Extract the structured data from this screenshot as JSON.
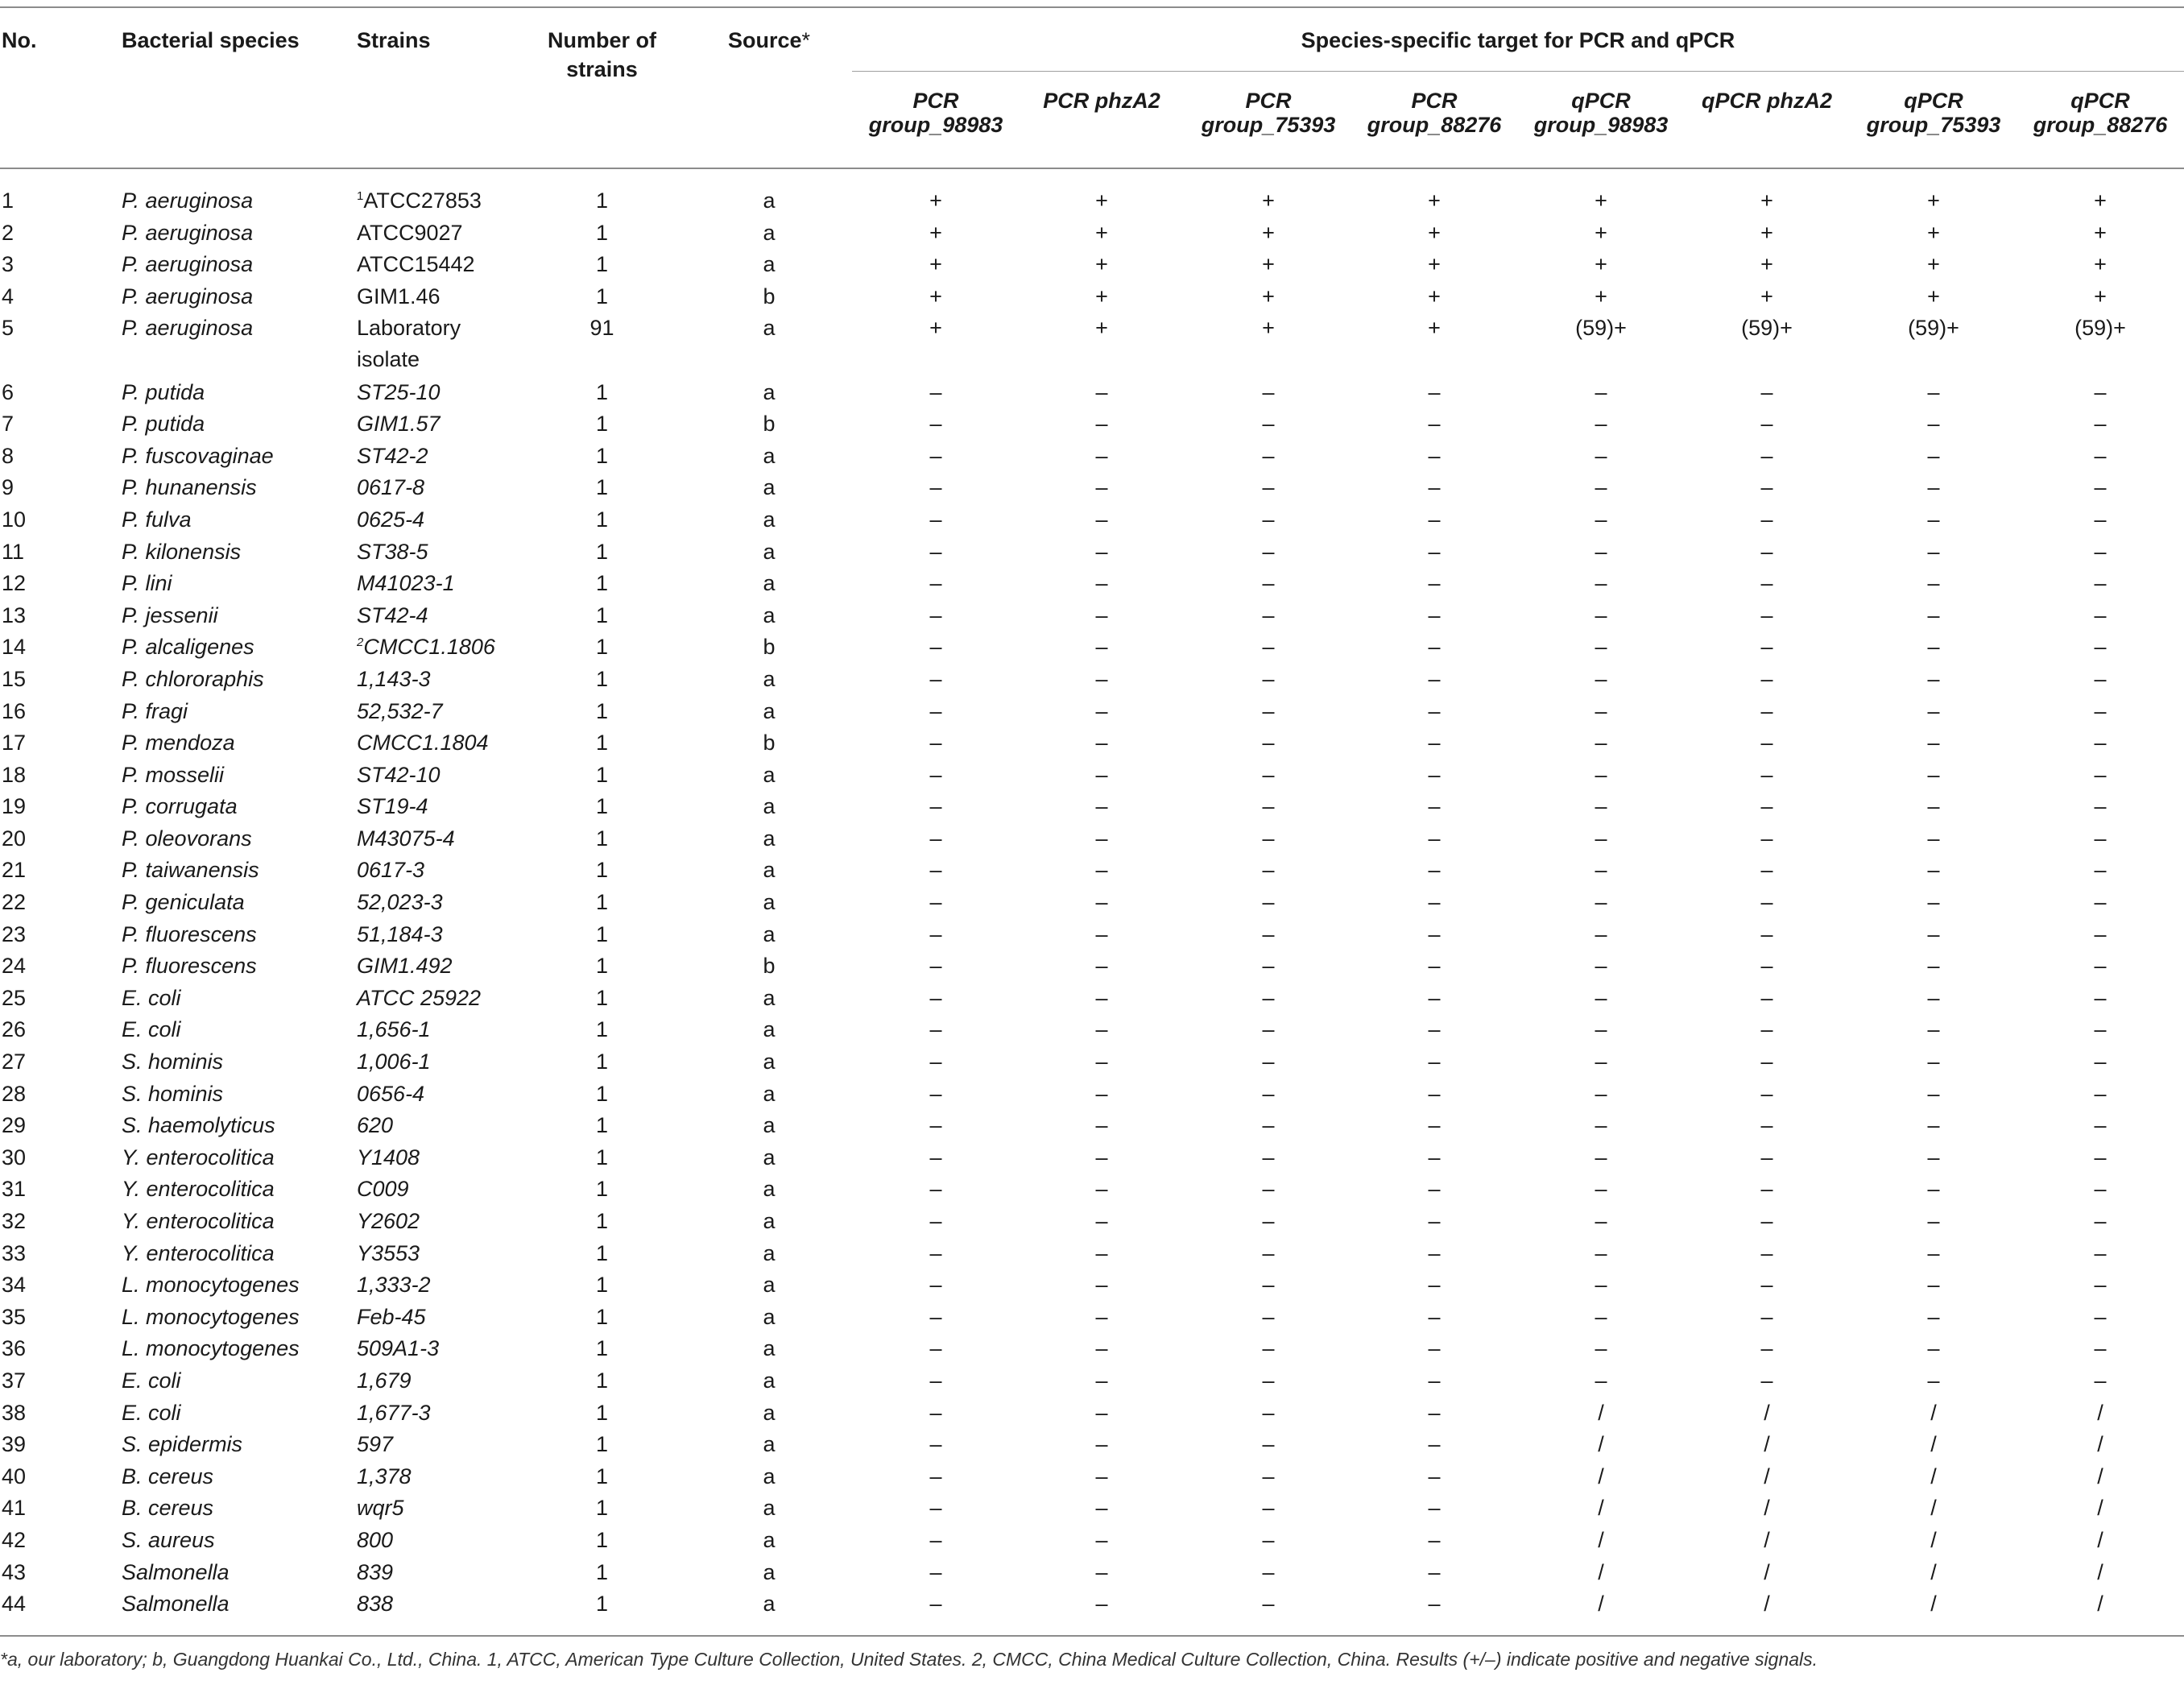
{
  "header": {
    "no": "No.",
    "species": "Bacterial species",
    "strains": "Strains",
    "number_line1": "Number of",
    "number_line2": "strains",
    "source": "Source",
    "source_mark": "*",
    "span_title": "Species-specific target for PCR and qPCR",
    "targets": [
      {
        "l1": "PCR",
        "l2": "group_98983"
      },
      {
        "l1": "PCR phzA2",
        "l2": ""
      },
      {
        "l1": "PCR",
        "l2": "group_75393"
      },
      {
        "l1": "PCR",
        "l2": "group_88276"
      },
      {
        "l1": "qPCR",
        "l2": "group_98983"
      },
      {
        "l1": "qPCR phzA2",
        "l2": ""
      },
      {
        "l1": "qPCR",
        "l2": "group_75393"
      },
      {
        "l1": "qPCR",
        "l2": "group_88276"
      }
    ]
  },
  "rows": [
    {
      "no": "1",
      "species": "P. aeruginosa",
      "sup": "1",
      "strain": "ATCC27853",
      "strain_italic": false,
      "n": "1",
      "src": "a",
      "v": [
        "+",
        "+",
        "+",
        "+",
        "+",
        "+",
        "+",
        "+"
      ]
    },
    {
      "no": "2",
      "species": "P. aeruginosa",
      "strain": "ATCC9027",
      "strain_italic": false,
      "n": "1",
      "src": "a",
      "v": [
        "+",
        "+",
        "+",
        "+",
        "+",
        "+",
        "+",
        "+"
      ]
    },
    {
      "no": "3",
      "species": "P. aeruginosa",
      "strain": "ATCC15442",
      "strain_italic": false,
      "n": "1",
      "src": "a",
      "v": [
        "+",
        "+",
        "+",
        "+",
        "+",
        "+",
        "+",
        "+"
      ]
    },
    {
      "no": "4",
      "species": "P. aeruginosa",
      "strain": "GIM1.46",
      "strain_italic": false,
      "n": "1",
      "src": "b",
      "v": [
        "+",
        "+",
        "+",
        "+",
        "+",
        "+",
        "+",
        "+"
      ]
    },
    {
      "no": "5",
      "species": "P. aeruginosa",
      "strain": "Laboratory isolate",
      "strain_italic": false,
      "tall": true,
      "n": "91",
      "src": "a",
      "v": [
        "+",
        "+",
        "+",
        "+",
        "(59)+",
        "(59)+",
        "(59)+",
        "(59)+"
      ]
    },
    {
      "no": "6",
      "species": "P. putida",
      "strain": "ST25-10",
      "n": "1",
      "src": "a",
      "v": [
        "–",
        "–",
        "–",
        "–",
        "–",
        "–",
        "–",
        "–"
      ]
    },
    {
      "no": "7",
      "species": "P. putida",
      "strain": "GIM1.57",
      "n": "1",
      "src": "b",
      "v": [
        "–",
        "–",
        "–",
        "–",
        "–",
        "–",
        "–",
        "–"
      ]
    },
    {
      "no": "8",
      "species": "P. fuscovaginae",
      "strain": "ST42-2",
      "n": "1",
      "src": "a",
      "v": [
        "–",
        "–",
        "–",
        "–",
        "–",
        "–",
        "–",
        "–"
      ]
    },
    {
      "no": "9",
      "species": "P. hunanensis",
      "strain": "0617-8",
      "n": "1",
      "src": "a",
      "v": [
        "–",
        "–",
        "–",
        "–",
        "–",
        "–",
        "–",
        "–"
      ]
    },
    {
      "no": "10",
      "species": "P. fulva",
      "strain": "0625-4",
      "n": "1",
      "src": "a",
      "v": [
        "–",
        "–",
        "–",
        "–",
        "–",
        "–",
        "–",
        "–"
      ]
    },
    {
      "no": "11",
      "species": "P. kilonensis",
      "strain": "ST38-5",
      "n": "1",
      "src": "a",
      "v": [
        "–",
        "–",
        "–",
        "–",
        "–",
        "–",
        "–",
        "–"
      ]
    },
    {
      "no": "12",
      "species": "P. lini",
      "strain": "M41023-1",
      "n": "1",
      "src": "a",
      "v": [
        "–",
        "–",
        "–",
        "–",
        "–",
        "–",
        "–",
        "–"
      ]
    },
    {
      "no": "13",
      "species": "P. jessenii",
      "strain": "ST42-4",
      "n": "1",
      "src": "a",
      "v": [
        "–",
        "–",
        "–",
        "–",
        "–",
        "–",
        "–",
        "–"
      ]
    },
    {
      "no": "14",
      "species": "P. alcaligenes",
      "sup": "2",
      "strain": "CMCC1.1806",
      "n": "1",
      "src": "b",
      "v": [
        "–",
        "–",
        "–",
        "–",
        "–",
        "–",
        "–",
        "–"
      ]
    },
    {
      "no": "15",
      "species": "P. chlororaphis",
      "strain": "1,143-3",
      "n": "1",
      "src": "a",
      "v": [
        "–",
        "–",
        "–",
        "–",
        "–",
        "–",
        "–",
        "–"
      ]
    },
    {
      "no": "16",
      "species": "P. fragi",
      "strain": "52,532-7",
      "n": "1",
      "src": "a",
      "v": [
        "–",
        "–",
        "–",
        "–",
        "–",
        "–",
        "–",
        "–"
      ]
    },
    {
      "no": "17",
      "species": "P. mendoza",
      "strain": "CMCC1.1804",
      "n": "1",
      "src": "b",
      "v": [
        "–",
        "–",
        "–",
        "–",
        "–",
        "–",
        "–",
        "–"
      ]
    },
    {
      "no": "18",
      "species": "P. mosselii",
      "strain": "ST42-10",
      "n": "1",
      "src": "a",
      "v": [
        "–",
        "–",
        "–",
        "–",
        "–",
        "–",
        "–",
        "–"
      ]
    },
    {
      "no": "19",
      "species": "P. corrugata",
      "strain": "ST19-4",
      "n": "1",
      "src": "a",
      "v": [
        "–",
        "–",
        "–",
        "–",
        "–",
        "–",
        "–",
        "–"
      ]
    },
    {
      "no": "20",
      "species": "P. oleovorans",
      "strain": "M43075-4",
      "n": "1",
      "src": "a",
      "v": [
        "–",
        "–",
        "–",
        "–",
        "–",
        "–",
        "–",
        "–"
      ]
    },
    {
      "no": "21",
      "species": "P. taiwanensis",
      "strain": "0617-3",
      "n": "1",
      "src": "a",
      "v": [
        "–",
        "–",
        "–",
        "–",
        "–",
        "–",
        "–",
        "–"
      ]
    },
    {
      "no": "22",
      "species": "P. geniculata",
      "strain": "52,023-3",
      "n": "1",
      "src": "a",
      "v": [
        "–",
        "–",
        "–",
        "–",
        "–",
        "–",
        "–",
        "–"
      ]
    },
    {
      "no": "23",
      "species": "P. fluorescens",
      "strain": "51,184-3",
      "n": "1",
      "src": "a",
      "v": [
        "–",
        "–",
        "–",
        "–",
        "–",
        "–",
        "–",
        "–"
      ]
    },
    {
      "no": "24",
      "species": "P. fluorescens",
      "strain": "GIM1.492",
      "n": "1",
      "src": "b",
      "v": [
        "–",
        "–",
        "–",
        "–",
        "–",
        "–",
        "–",
        "–"
      ]
    },
    {
      "no": "25",
      "species": "E. coli",
      "strain": "ATCC 25922",
      "n": "1",
      "src": "a",
      "v": [
        "–",
        "–",
        "–",
        "–",
        "–",
        "–",
        "–",
        "–"
      ]
    },
    {
      "no": "26",
      "species": "E. coli",
      "strain": "1,656-1",
      "n": "1",
      "src": "a",
      "v": [
        "–",
        "–",
        "–",
        "–",
        "–",
        "–",
        "–",
        "–"
      ]
    },
    {
      "no": "27",
      "species": "S. hominis",
      "strain": "1,006-1",
      "n": "1",
      "src": "a",
      "v": [
        "–",
        "–",
        "–",
        "–",
        "–",
        "–",
        "–",
        "–"
      ]
    },
    {
      "no": "28",
      "species": "S. hominis",
      "strain": "0656-4",
      "n": "1",
      "src": "a",
      "v": [
        "–",
        "–",
        "–",
        "–",
        "–",
        "–",
        "–",
        "–"
      ]
    },
    {
      "no": "29",
      "species": "S. haemolyticus",
      "strain": "620",
      "n": "1",
      "src": "a",
      "v": [
        "–",
        "–",
        "–",
        "–",
        "–",
        "–",
        "–",
        "–"
      ]
    },
    {
      "no": "30",
      "species": "Y. enterocolitica",
      "strain": "Y1408",
      "n": "1",
      "src": "a",
      "v": [
        "–",
        "–",
        "–",
        "–",
        "–",
        "–",
        "–",
        "–"
      ]
    },
    {
      "no": "31",
      "species": "Y. enterocolitica",
      "strain": "C009",
      "n": "1",
      "src": "a",
      "v": [
        "–",
        "–",
        "–",
        "–",
        "–",
        "–",
        "–",
        "–"
      ]
    },
    {
      "no": "32",
      "species": "Y. enterocolitica",
      "strain": "Y2602",
      "n": "1",
      "src": "a",
      "v": [
        "–",
        "–",
        "–",
        "–",
        "–",
        "–",
        "–",
        "–"
      ]
    },
    {
      "no": "33",
      "species": "Y. enterocolitica",
      "strain": "Y3553",
      "n": "1",
      "src": "a",
      "v": [
        "–",
        "–",
        "–",
        "–",
        "–",
        "–",
        "–",
        "–"
      ]
    },
    {
      "no": "34",
      "species": "L. monocytogenes",
      "strain": "1,333-2",
      "n": "1",
      "src": "a",
      "v": [
        "–",
        "–",
        "–",
        "–",
        "–",
        "–",
        "–",
        "–"
      ]
    },
    {
      "no": "35",
      "species": "L. monocytogenes",
      "strain": "Feb-45",
      "n": "1",
      "src": "a",
      "v": [
        "–",
        "–",
        "–",
        "–",
        "–",
        "–",
        "–",
        "–"
      ]
    },
    {
      "no": "36",
      "species": "L. monocytogenes",
      "strain": "509A1-3",
      "n": "1",
      "src": "a",
      "v": [
        "–",
        "–",
        "–",
        "–",
        "–",
        "–",
        "–",
        "–"
      ]
    },
    {
      "no": "37",
      "species": "E. coli",
      "strain": "1,679",
      "n": "1",
      "src": "a",
      "v": [
        "–",
        "–",
        "–",
        "–",
        "–",
        "–",
        "–",
        "–"
      ]
    },
    {
      "no": "38",
      "species": "E. coli",
      "strain": "1,677-3",
      "n": "1",
      "src": "a",
      "v": [
        "–",
        "–",
        "–",
        "–",
        "/",
        "/",
        "/",
        "/"
      ]
    },
    {
      "no": "39",
      "species": "S. epidermis",
      "strain": "597",
      "n": "1",
      "src": "a",
      "v": [
        "–",
        "–",
        "–",
        "–",
        "/",
        "/",
        "/",
        "/"
      ]
    },
    {
      "no": "40",
      "species": "B. cereus",
      "strain": "1,378",
      "n": "1",
      "src": "a",
      "v": [
        "–",
        "–",
        "–",
        "–",
        "/",
        "/",
        "/",
        "/"
      ]
    },
    {
      "no": "41",
      "species": "B. cereus",
      "strain": "wqr5",
      "n": "1",
      "src": "a",
      "v": [
        "–",
        "–",
        "–",
        "–",
        "/",
        "/",
        "/",
        "/"
      ]
    },
    {
      "no": "42",
      "species": "S. aureus",
      "strain": "800",
      "n": "1",
      "src": "a",
      "v": [
        "–",
        "–",
        "–",
        "–",
        "/",
        "/",
        "/",
        "/"
      ]
    },
    {
      "no": "43",
      "species": "Salmonella",
      "strain": "839",
      "n": "1",
      "src": "a",
      "v": [
        "–",
        "–",
        "–",
        "–",
        "/",
        "/",
        "/",
        "/"
      ]
    },
    {
      "no": "44",
      "species": "Salmonella",
      "strain": "838",
      "n": "1",
      "src": "a",
      "v": [
        "–",
        "–",
        "–",
        "–",
        "/",
        "/",
        "/",
        "/"
      ]
    }
  ],
  "footnote": "*a, our laboratory; b, Guangdong Huankai Co., Ltd., China. 1, ATCC, American Type Culture Collection, United States. 2, CMCC, China Medical Culture Collection, China. Results (+/–) indicate positive and negative signals."
}
